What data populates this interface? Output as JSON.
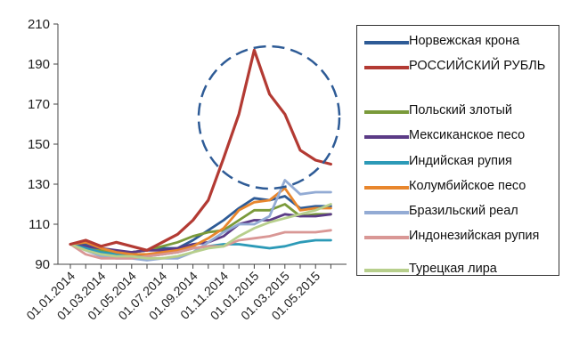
{
  "chart_data": {
    "type": "line",
    "categories": [
      "01.01.2014",
      "01.02.2014",
      "01.03.2014",
      "01.04.2014",
      "01.05.2014",
      "01.06.2014",
      "01.07.2014",
      "01.08.2014",
      "01.09.2014",
      "01.10.2014",
      "01.11.2014",
      "01.12.2014",
      "01.01.2015",
      "01.02.2015",
      "01.03.2015",
      "01.04.2015",
      "01.05.2015",
      "01.06.2015"
    ],
    "tick_labels": [
      "01.01.2014",
      "01.03.2014",
      "01.05.2014",
      "01.07.2014",
      "01.09.2014",
      "01.11.2014",
      "01.01.2015",
      "01.03.2015",
      "01.05.2015"
    ],
    "yticks": [
      90,
      110,
      130,
      150,
      170,
      190,
      210
    ],
    "ylim": [
      90,
      210
    ],
    "title": "",
    "xlabel": "",
    "ylabel": "",
    "grid": false,
    "legend": "right",
    "annotation": "dashed ellipse around peak",
    "series": [
      {
        "name": "Норвежская крона",
        "color": "#2e5b96",
        "values": [
          100,
          100,
          97,
          96,
          96,
          97,
          98,
          98,
          102,
          107,
          112,
          118,
          123,
          122,
          124,
          118,
          119,
          119
        ]
      },
      {
        "name": "РОССИЙСКИЙ РУБЛЬ",
        "color": "#b33a33",
        "values": [
          100,
          102,
          99,
          101,
          99,
          97,
          101,
          105,
          112,
          122,
          143,
          165,
          197,
          175,
          165,
          147,
          142,
          140
        ]
      },
      {
        "name": "Польский злотый",
        "color": "#7a9a3a",
        "values": [
          100,
          99,
          97,
          96,
          96,
          97,
          99,
          101,
          104,
          106,
          107,
          112,
          117,
          117,
          120,
          114,
          115,
          115
        ]
      },
      {
        "name": "Мексиканское песо",
        "color": "#5b3b86",
        "values": [
          100,
          99,
          98,
          97,
          96,
          97,
          97,
          98,
          100,
          101,
          104,
          110,
          112,
          112,
          115,
          114,
          114,
          115
        ]
      },
      {
        "name": "Индийская рупия",
        "color": "#2c9ab7",
        "values": [
          100,
          98,
          96,
          95,
          94,
          94,
          95,
          96,
          98,
          99,
          100,
          100,
          99,
          98,
          99,
          101,
          102,
          102
        ]
      },
      {
        "name": "Колумбийское песо",
        "color": "#e8862d",
        "values": [
          100,
          101,
          98,
          96,
          95,
          95,
          96,
          97,
          99,
          103,
          108,
          117,
          121,
          122,
          128,
          117,
          118,
          118
        ]
      },
      {
        "name": "Бразильский реал",
        "color": "#93abd4",
        "values": [
          100,
          97,
          94,
          93,
          93,
          92,
          93,
          93,
          96,
          101,
          106,
          110,
          110,
          114,
          132,
          125,
          126,
          126
        ]
      },
      {
        "name": "Индонезийская рупия",
        "color": "#d99795",
        "values": [
          100,
          95,
          93,
          93,
          93,
          94,
          95,
          96,
          98,
          99,
          99,
          102,
          103,
          104,
          106,
          106,
          106,
          107
        ]
      },
      {
        "name": "Турецкая лира",
        "color": "#b7cf8c",
        "values": [
          100,
          97,
          95,
          94,
          94,
          93,
          93,
          94,
          96,
          98,
          99,
          104,
          108,
          111,
          113,
          115,
          117,
          120
        ]
      }
    ]
  }
}
